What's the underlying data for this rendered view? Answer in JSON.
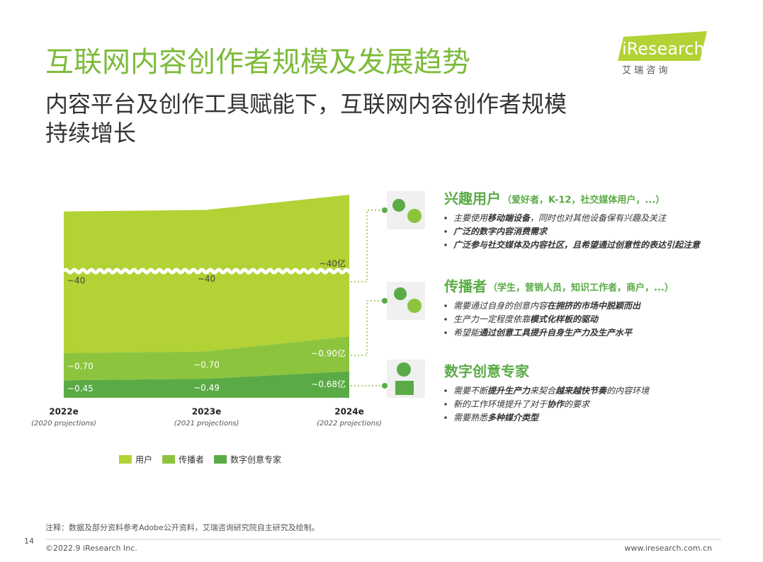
{
  "header": {
    "title": "互联网内容创作者规模及发展趋势",
    "subtitle_lines": [
      "内容平台及创作工具赋能下，互联网内容创作者规模",
      "持续增长"
    ],
    "logo": "iResearch",
    "logo_sub": "艾 瑞 咨 询"
  },
  "chart_data": {
    "type": "area",
    "categories": [
      "2022e",
      "2023e",
      "2024e"
    ],
    "category_notes": [
      "(2020 projections)",
      "(2021 projections)",
      "(2022 projections)"
    ],
    "series": [
      {
        "name": "用户",
        "color": "#b2d235",
        "values": [
          40,
          40,
          40
        ],
        "value_labels": [
          "~40",
          "~40",
          "~40亿"
        ]
      },
      {
        "name": "传播者",
        "color": "#8cc43e",
        "values": [
          0.7,
          0.7,
          0.9
        ],
        "value_labels": [
          "~0.70",
          "~0.70",
          "~0.90亿"
        ]
      },
      {
        "name": "数字创意专家",
        "color": "#5aab46",
        "values": [
          0.45,
          0.49,
          0.68
        ],
        "value_labels": [
          "~0.45",
          "~0.49",
          "~0.68亿"
        ]
      }
    ]
  },
  "profiles": [
    {
      "title": "兴趣用户",
      "subtitle": "（爱好者，K-12，社交媒体用户，...）",
      "bullets": [
        [
          "主要使用",
          "移动端设备",
          "，同时也对其他设备保有兴趣及关注"
        ],
        [
          "",
          "广泛的数字内容消费需求"
        ],
        [
          "",
          "广泛参与社交媒体及内容社区，且希望通过创意性的表达引起注意"
        ]
      ]
    },
    {
      "title": "传播者",
      "subtitle": "（学生，营销人员，知识工作者，商户，...）",
      "bullets": [
        [
          "需要通过自身的创意内容",
          "在拥挤的市场中脱颖而出"
        ],
        [
          "生产力一定程度依靠",
          "模式化样板的驱动"
        ],
        [
          "希望能",
          "通过创意工具提升自身生产力及生产水平"
        ]
      ]
    },
    {
      "title": "数字创意专家",
      "bullets": [
        [
          "需要不断",
          "提升生产力",
          "来契合",
          "越来越快节奏",
          "的内容环境"
        ],
        [
          "新的工作环境提升了对于",
          "协作",
          "的要求"
        ],
        [
          "需要熟悉",
          "多种媒介类型"
        ]
      ]
    }
  ],
  "footer": {
    "note": "注释：数据及部分资料参考Adobe公开资料，艾瑞咨询研究院自主研究及绘制。",
    "page": "14",
    "copyright": "©2022.9 iResearch Inc.",
    "website": "www.iresearch.com.cn"
  }
}
